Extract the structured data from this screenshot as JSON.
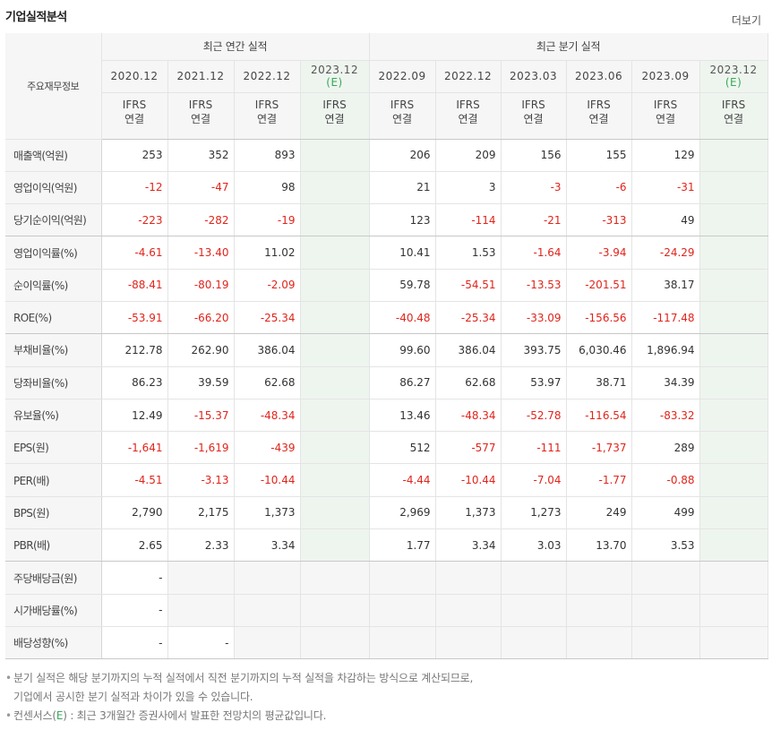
{
  "header": {
    "title": "기업실적분석",
    "more_label": "더보기"
  },
  "table": {
    "corner_label": "주요재무정보",
    "group_annual": "최근 연간 실적",
    "group_quarterly": "최근 분기 실적",
    "periods": [
      {
        "label": "2020.12",
        "estimate": false
      },
      {
        "label": "2021.12",
        "estimate": false
      },
      {
        "label": "2022.12",
        "estimate": false
      },
      {
        "label": "2023.12",
        "estimate": true
      },
      {
        "label": "2022.09",
        "estimate": false
      },
      {
        "label": "2022.12",
        "estimate": false
      },
      {
        "label": "2023.03",
        "estimate": false
      },
      {
        "label": "2023.06",
        "estimate": false
      },
      {
        "label": "2023.09",
        "estimate": false
      },
      {
        "label": "2023.12",
        "estimate": true
      }
    ],
    "estimate_mark": "(E)",
    "standard_line1": "IFRS",
    "standard_line2": "연결",
    "rows": [
      {
        "label": "매출액(억원)",
        "values": [
          "253",
          "352",
          "893",
          "",
          "206",
          "209",
          "156",
          "155",
          "129",
          ""
        ]
      },
      {
        "label": "영업이익(억원)",
        "values": [
          "-12",
          "-47",
          "98",
          "",
          "21",
          "3",
          "-3",
          "-6",
          "-31",
          ""
        ]
      },
      {
        "label": "당기순이익(억원)",
        "values": [
          "-223",
          "-282",
          "-19",
          "",
          "123",
          "-114",
          "-21",
          "-313",
          "49",
          ""
        ]
      },
      {
        "label": "영업이익률(%)",
        "values": [
          "-4.61",
          "-13.40",
          "11.02",
          "",
          "10.41",
          "1.53",
          "-1.64",
          "-3.94",
          "-24.29",
          ""
        ]
      },
      {
        "label": "순이익률(%)",
        "values": [
          "-88.41",
          "-80.19",
          "-2.09",
          "",
          "59.78",
          "-54.51",
          "-13.53",
          "-201.51",
          "38.17",
          ""
        ]
      },
      {
        "label": "ROE(%)",
        "values": [
          "-53.91",
          "-66.20",
          "-25.34",
          "",
          "-40.48",
          "-25.34",
          "-33.09",
          "-156.56",
          "-117.48",
          ""
        ]
      },
      {
        "label": "부채비율(%)",
        "values": [
          "212.78",
          "262.90",
          "386.04",
          "",
          "99.60",
          "386.04",
          "393.75",
          "6,030.46",
          "1,896.94",
          ""
        ]
      },
      {
        "label": "당좌비율(%)",
        "values": [
          "86.23",
          "39.59",
          "62.68",
          "",
          "86.27",
          "62.68",
          "53.97",
          "38.71",
          "34.39",
          ""
        ]
      },
      {
        "label": "유보율(%)",
        "values": [
          "12.49",
          "-15.37",
          "-48.34",
          "",
          "13.46",
          "-48.34",
          "-52.78",
          "-116.54",
          "-83.32",
          ""
        ]
      },
      {
        "label": "EPS(원)",
        "values": [
          "-1,641",
          "-1,619",
          "-439",
          "",
          "512",
          "-577",
          "-111",
          "-1,737",
          "289",
          ""
        ]
      },
      {
        "label": "PER(배)",
        "values": [
          "-4.51",
          "-3.13",
          "-10.44",
          "",
          "-4.44",
          "-10.44",
          "-7.04",
          "-1.77",
          "-0.88",
          ""
        ]
      },
      {
        "label": "BPS(원)",
        "values": [
          "2,790",
          "2,175",
          "1,373",
          "",
          "2,969",
          "1,373",
          "1,273",
          "249",
          "499",
          ""
        ]
      },
      {
        "label": "PBR(배)",
        "values": [
          "2.65",
          "2.33",
          "3.34",
          "",
          "1.77",
          "3.34",
          "3.03",
          "13.70",
          "3.53",
          ""
        ]
      },
      {
        "label": "주당배당금(원)",
        "values": [
          "-",
          null,
          null,
          null,
          null,
          null,
          null,
          null,
          null,
          null
        ]
      },
      {
        "label": "시가배당률(%)",
        "values": [
          "-",
          null,
          null,
          null,
          null,
          null,
          null,
          null,
          null,
          null
        ]
      },
      {
        "label": "배당성향(%)",
        "values": [
          "-",
          "-",
          null,
          null,
          null,
          null,
          null,
          null,
          null,
          null
        ]
      }
    ]
  },
  "notes": {
    "note1_line1": "분기 실적은 해당 분기까지의 누적 실적에서 직전 분기까지의 누적 실적을 차감하는 방식으로 계산되므로,",
    "note1_line2": "기업에서 공시한 분기 실적과 차이가 있을 수 있습니다.",
    "note2_prefix": "컨센서스(",
    "note2_mark": "E",
    "note2_suffix": ") : 최근 3개월간 증권사에서 발표한 전망치의 평균값입니다.",
    "bullet": "•"
  },
  "colors": {
    "negative": "#e0241b",
    "ifrs": "#f26a21",
    "estimate_mark": "#3aa85a",
    "estimate_bg": "#eef5ef",
    "header_bg": "#f6f6f6"
  }
}
